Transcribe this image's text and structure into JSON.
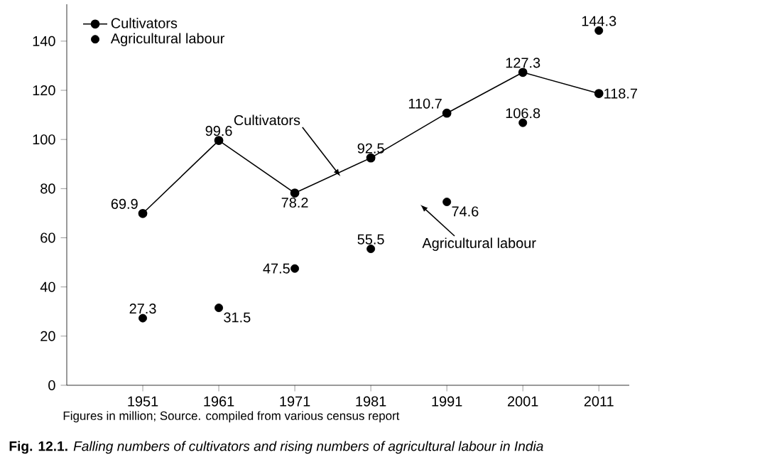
{
  "chart_data": {
    "type": "line",
    "title": "**Fig. 12.1.** *Falling numbers of cultivators and rising numbers of agricultural labour in India*",
    "x": [
      1951,
      1961,
      1971,
      1981,
      1991,
      2001,
      2011
    ],
    "series": [
      {
        "name": "Cultivators",
        "color": "#000000",
        "marker": "circle",
        "line_style": "solid",
        "values": [
          69.9,
          99.6,
          78.2,
          92.5,
          110.7,
          127.3,
          118.7
        ]
      },
      {
        "name": "Agricultural labour",
        "type": "scatter",
        "color": "#000000",
        "marker": "circle",
        "values": [
          27.3,
          31.5,
          47.5,
          55.5,
          74.6,
          106.8,
          144.3
        ]
      }
    ],
    "xlim": [
      1941,
      2015
    ],
    "ylim": [
      0,
      155
    ],
    "xticks": [
      1951,
      1961,
      1971,
      1981,
      1991,
      2001,
      2011
    ],
    "yticks": [
      0,
      20,
      40,
      60,
      80,
      100,
      120,
      140
    ],
    "data_labels": true,
    "legend": "top left",
    "grid": false,
    "annotations": [
      {
        "text": "Cultivators",
        "x": 1977,
        "y": 85
      },
      "Agricultural labour",
      "Figures in million; Source. compiled from various census report"
    ]
  }
}
